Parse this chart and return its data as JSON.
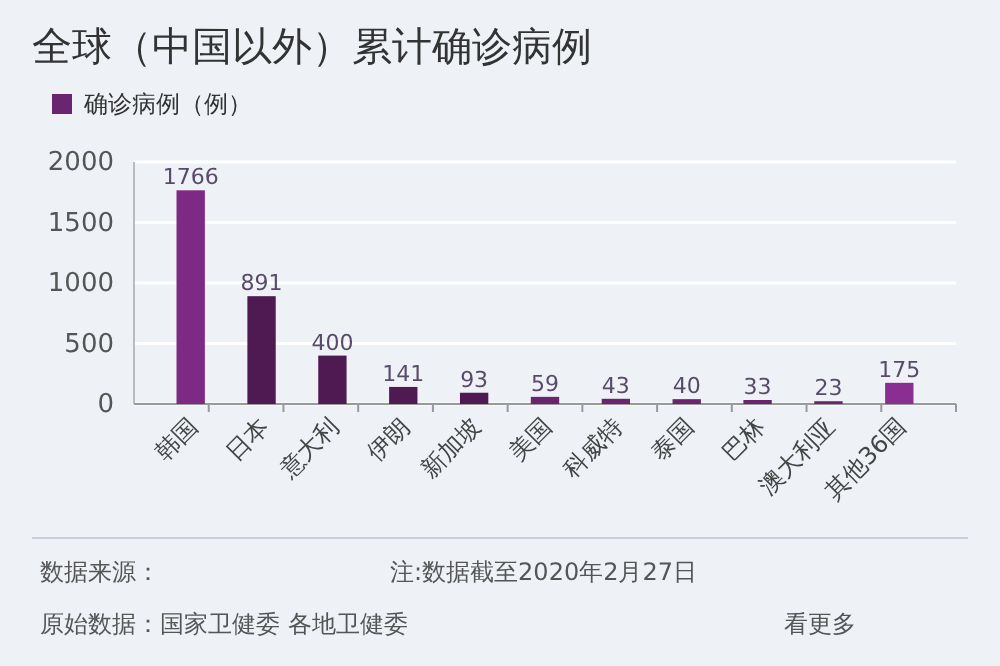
{
  "chart_data": {
    "type": "bar",
    "title": "全球（中国以外）累计确诊病例",
    "categories": [
      "韩国",
      "日本",
      "意大利",
      "伊朗",
      "新加坡",
      "美国",
      "科威特",
      "泰国",
      "巴林",
      "澳大利亚",
      "其他36国"
    ],
    "series": [
      {
        "name": "确诊病例（例）",
        "color": "#6b2470",
        "colors": [
          "#7e2a85",
          "#4f1a52",
          "#4f1a52",
          "#4f1a52",
          "#4f1a52",
          "#6b2470",
          "#6b2470",
          "#6b2470",
          "#6b2470",
          "#6b2470",
          "#8a2f91"
        ],
        "values": [
          1766,
          891,
          400,
          141,
          93,
          59,
          43,
          40,
          33,
          23,
          175
        ]
      }
    ],
    "ylim": [
      0,
      2000
    ],
    "yticks": [
      0,
      500,
      1000,
      1500,
      2000
    ],
    "grid": "y",
    "legend": "top left",
    "data_labels": true,
    "annotations": [
      "数据来源：",
      "注:数据截至2020年2月27日",
      "原始数据：国家卫健委 各地卫健委",
      "看更多"
    ]
  }
}
